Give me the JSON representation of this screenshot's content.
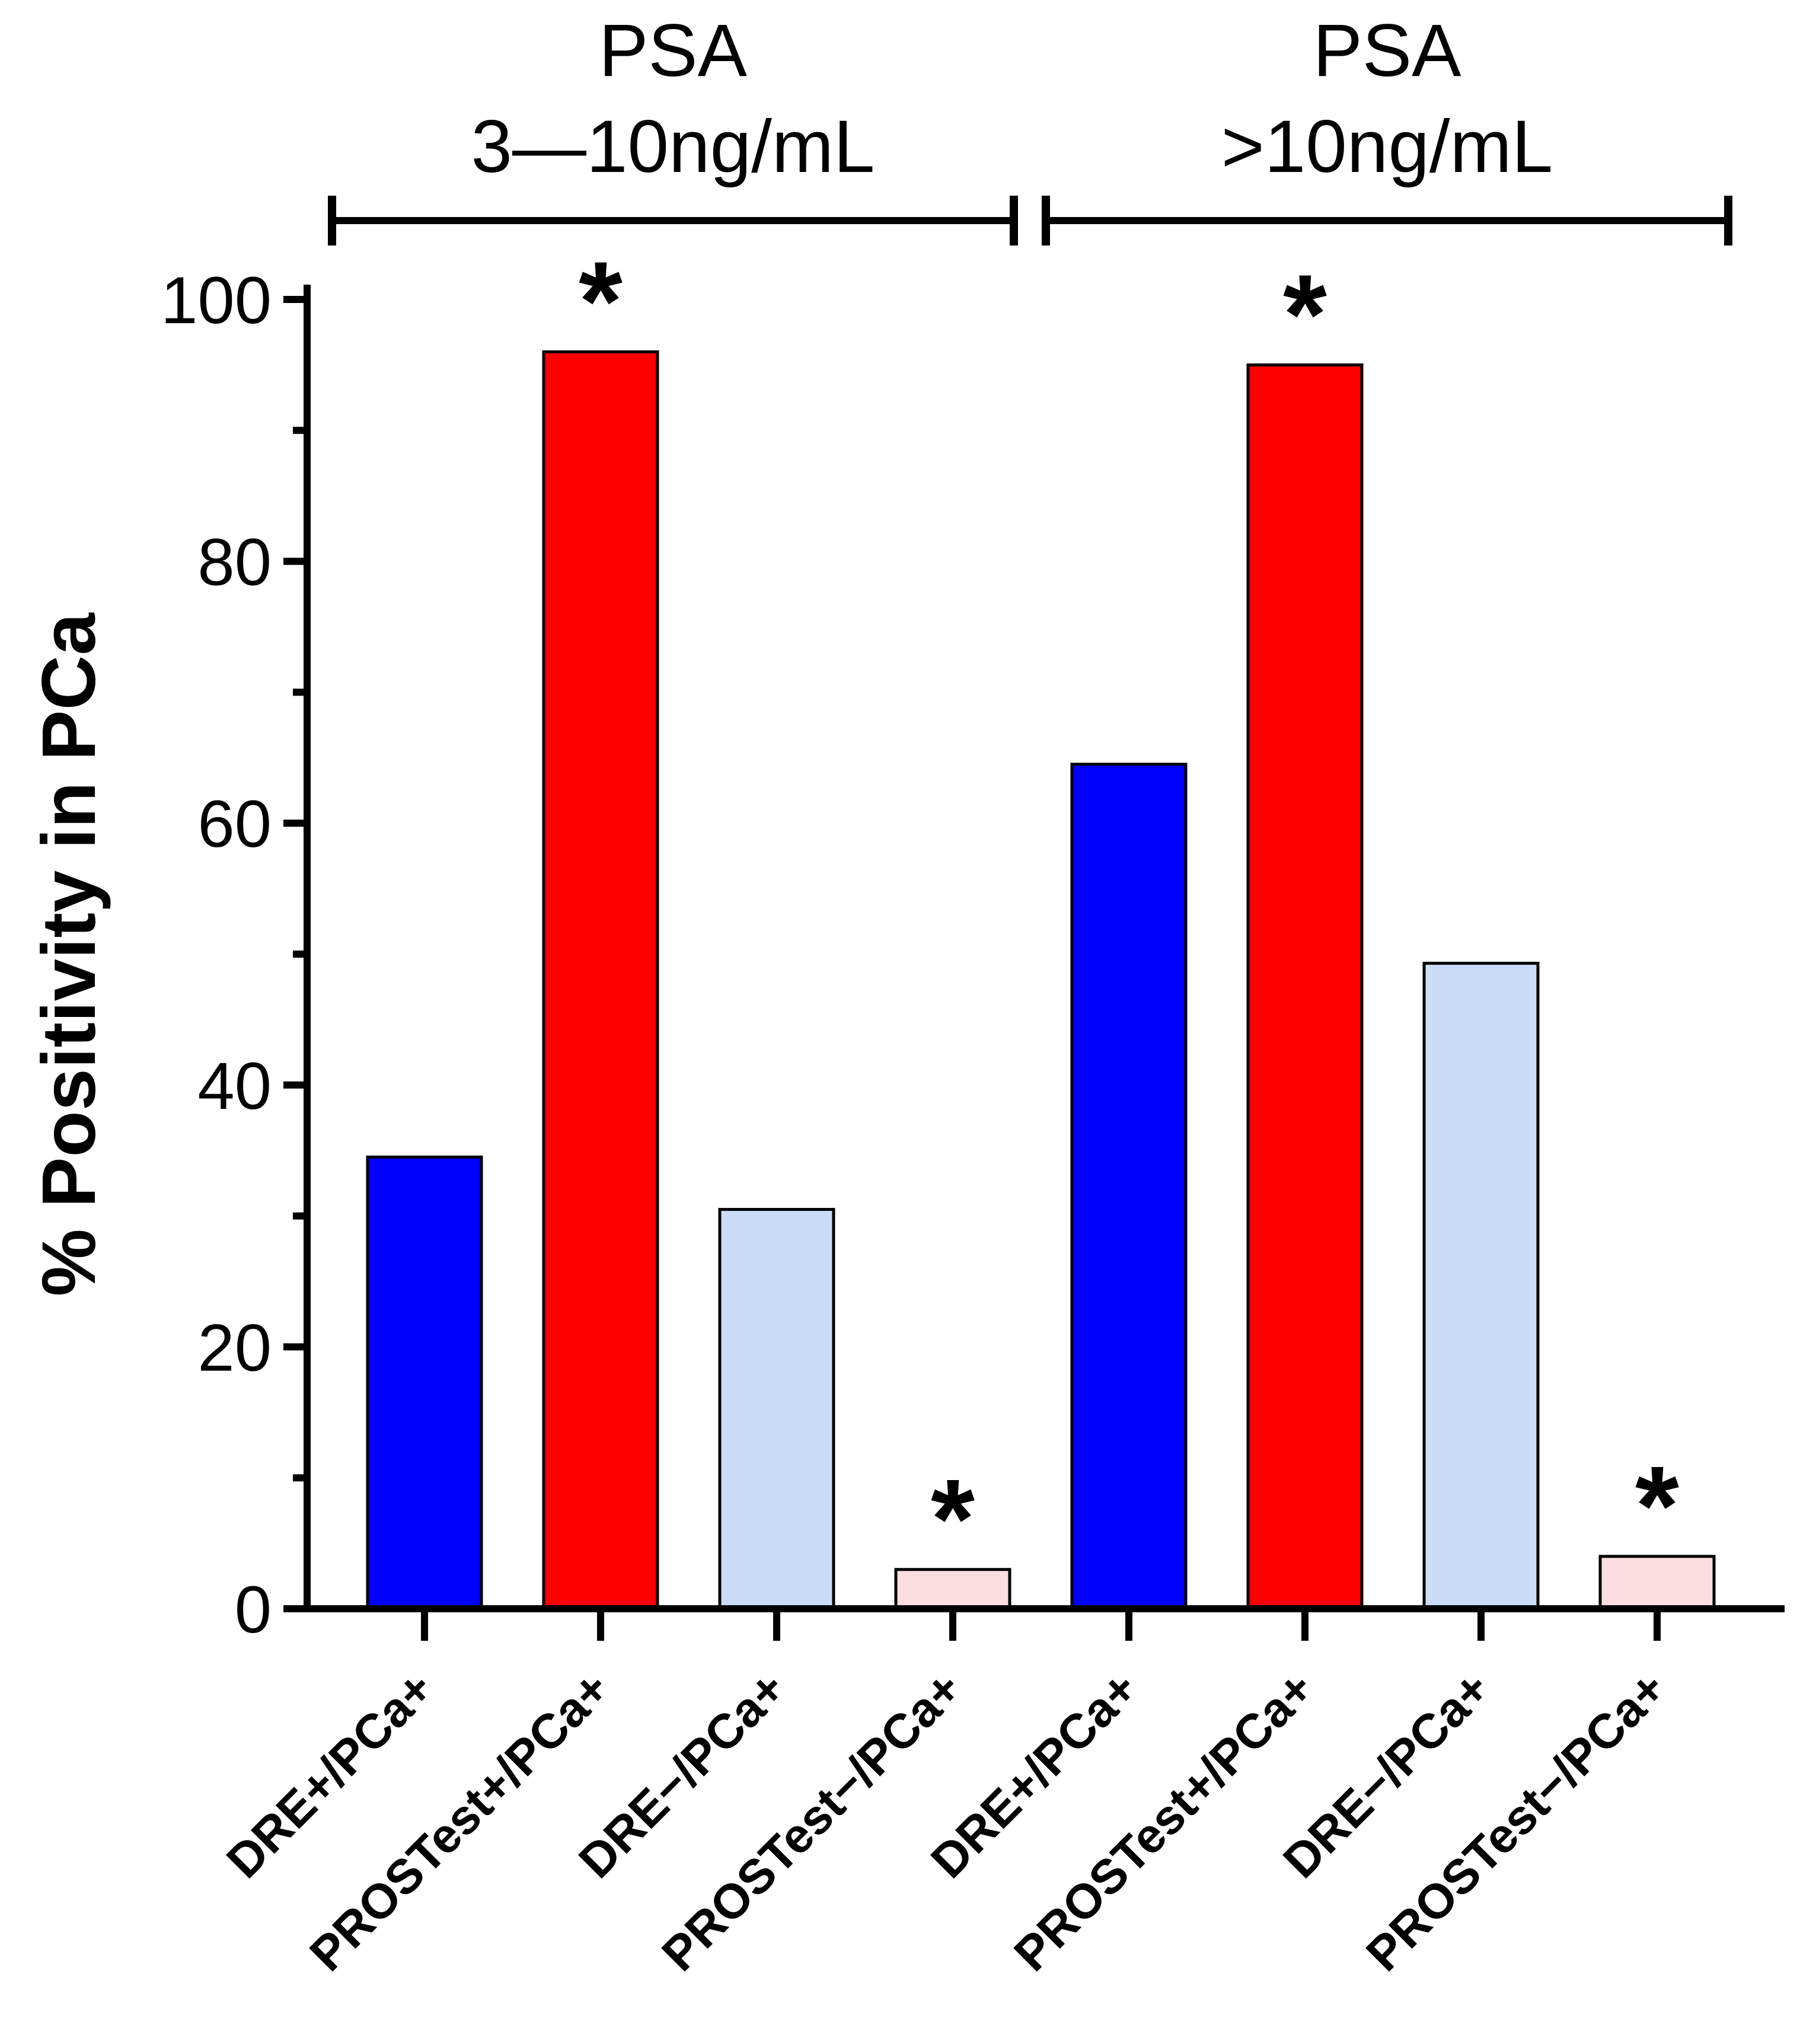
{
  "chart_data": {
    "type": "bar",
    "ylabel": "% Positivity in PCa",
    "ylim": [
      0,
      100
    ],
    "yticks": [
      0,
      20,
      40,
      60,
      80,
      100
    ],
    "yticks_labels": [
      "0",
      "20",
      "40",
      "60",
      "80",
      "100"
    ],
    "grid": false,
    "groups": [
      {
        "title_line1": "PSA",
        "title_line2": "3—10ng/mL"
      },
      {
        "title_line1": "PSA",
        "title_line2": ">10ng/mL"
      }
    ],
    "categories": [
      "DRE+/PCa+",
      "PROSTest+/PCa+",
      "DRE−/PCa+",
      "PROSTest−/PCa+",
      "DRE+/PCa+",
      "PROSTest+/PCa+",
      "DRE−/PCa+",
      "PROSTest−/PCa+"
    ],
    "values": [
      34.5,
      96,
      30.5,
      3,
      64.5,
      95,
      49.3,
      4
    ],
    "colors": [
      "#0000ff",
      "#ff0000",
      "#c9ddf6",
      "#fcdde2",
      "#0000ff",
      "#ff0000",
      "#c9ddf6",
      "#fcdde2"
    ],
    "significance_marks": [
      "",
      "*",
      "",
      "*",
      "",
      "*",
      "",
      "*"
    ]
  }
}
